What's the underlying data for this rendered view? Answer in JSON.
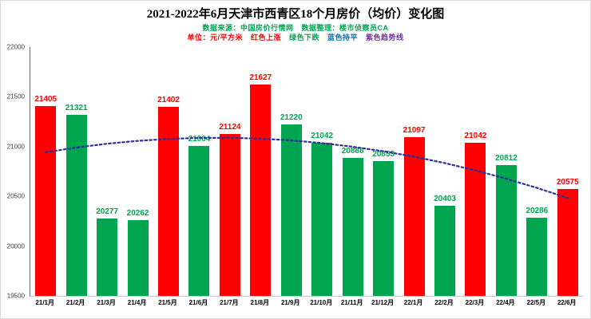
{
  "title": "2021-2022年6月天津市西青区18个月房价（均价）变化图",
  "subtitle1": [
    {
      "text": "数据来源：中国房价行情网",
      "color": "#00a550"
    },
    {
      "text": "数据整理：楼市侦察员CA",
      "color": "#00a550"
    }
  ],
  "subtitle2": [
    {
      "text": "单位：元/平方米",
      "color": "#fe0000"
    },
    {
      "text": "红色上涨",
      "color": "#fe0000"
    },
    {
      "text": "绿色下跌",
      "color": "#00a550"
    },
    {
      "text": "蓝色持平",
      "color": "#0070c0"
    },
    {
      "text": "紫色趋势线",
      "color": "#7030a0"
    }
  ],
  "chart_data": {
    "type": "bar",
    "title": "2021-2022年6月天津市西青区18个月房价（均价）变化图",
    "xlabel": "",
    "ylabel": "元/平方米",
    "categories": [
      "21/1月",
      "21/2月",
      "21/3月",
      "21/4月",
      "21/5月",
      "21/6月",
      "21/7月",
      "21/8月",
      "21/9月",
      "21/10月",
      "21/11月",
      "21/12月",
      "22/1月",
      "22/2月",
      "22/3月",
      "22/4月",
      "22/5月",
      "22/6月"
    ],
    "values": [
      21405,
      21321,
      20277,
      20262,
      21402,
      21004,
      21124,
      21627,
      21220,
      21042,
      20888,
      20853,
      21097,
      20403,
      21042,
      20812,
      20286,
      20575
    ],
    "directions": [
      "up",
      "down",
      "down",
      "down",
      "up",
      "down",
      "up",
      "up",
      "down",
      "down",
      "down",
      "down",
      "up",
      "down",
      "up",
      "down",
      "down",
      "up"
    ],
    "ylim": [
      19500,
      22000
    ],
    "yticks": [
      19500,
      20000,
      20500,
      21000,
      21500,
      22000
    ],
    "bar_color_up": "#fe0000",
    "bar_color_down": "#00a550",
    "trend_color": "#2e2e9c",
    "trend": "dotted declining trend line (quadratic fit of values)",
    "legend_position": "top",
    "grid": false
  }
}
